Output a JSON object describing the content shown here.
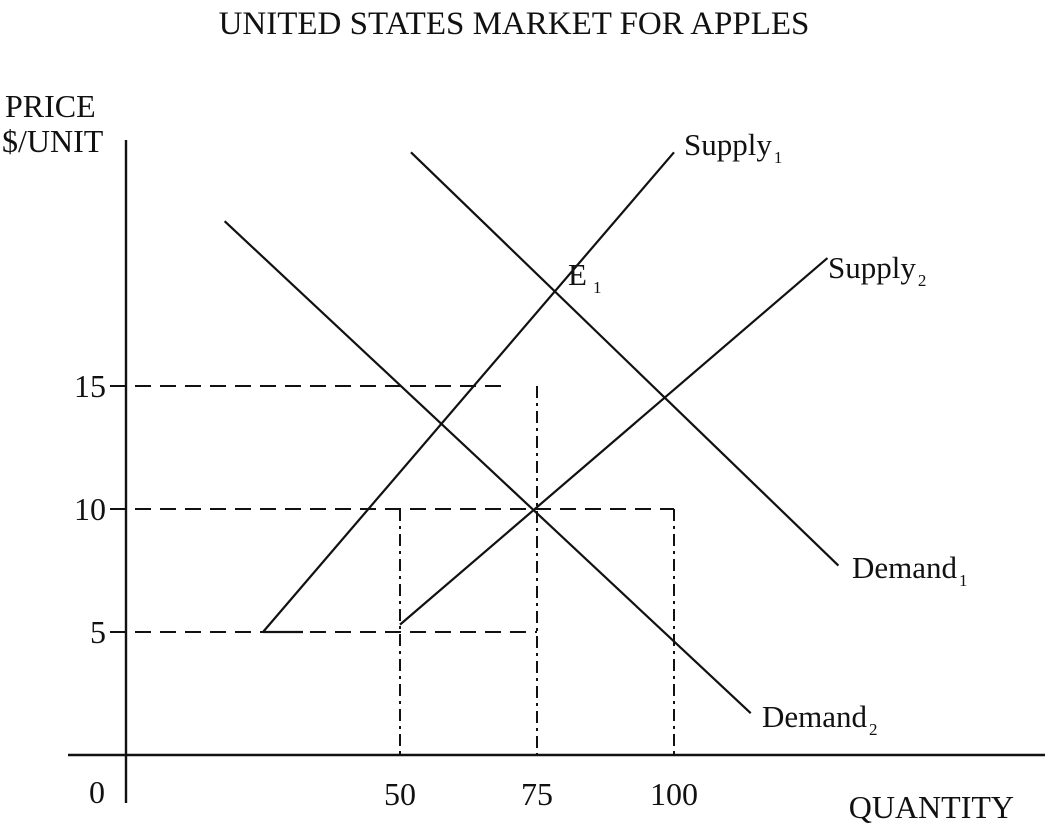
{
  "chart_data": {
    "type": "line",
    "title": "UNITED STATES MARKET FOR APPLES",
    "ylabel_line1": "PRICE",
    "ylabel_line2": "$/UNIT",
    "xlabel": "QUANTITY",
    "origin_label": "0",
    "x_ticks": [
      {
        "label": "50",
        "value": 50
      },
      {
        "label": "75",
        "value": 75
      },
      {
        "label": "100",
        "value": 100
      }
    ],
    "y_ticks": [
      {
        "label": "5",
        "value": 5
      },
      {
        "label": "10",
        "value": 10
      },
      {
        "label": "15",
        "value": 15
      }
    ],
    "xlim": [
      0,
      170
    ],
    "ylim": [
      0,
      25
    ],
    "series": [
      {
        "name": "Supply",
        "subscript": "1",
        "points": [
          [
            25,
            5
          ],
          [
            100,
            24.5
          ]
        ]
      },
      {
        "name": "Supply",
        "subscript": "2",
        "points": [
          [
            50,
            5.3
          ],
          [
            128,
            20.2
          ]
        ]
      },
      {
        "name": "Demand",
        "subscript": "1",
        "points": [
          [
            52,
            24.5
          ],
          [
            130,
            7.7
          ]
        ]
      },
      {
        "name": "Demand",
        "subscript": "2",
        "points": [
          [
            18,
            21.7
          ],
          [
            114,
            1.7
          ]
        ]
      }
    ],
    "equilibrium_label": {
      "text": "E",
      "subscript": "1"
    },
    "reference_lines": {
      "horizontal": [
        {
          "y": 15,
          "x_end": 70
        },
        {
          "y": 10,
          "x_end": 100
        },
        {
          "y": 5,
          "x_end": 75
        }
      ],
      "vertical": [
        {
          "x": 50,
          "y_end": 10,
          "y_start": 0
        },
        {
          "x": 75,
          "y_end": 15,
          "y_start": 0
        },
        {
          "x": 100,
          "y_end": 10,
          "y_start": 0
        }
      ]
    },
    "grid": false,
    "colors": {
      "ink": "#111111",
      "background": "#ffffff"
    }
  }
}
